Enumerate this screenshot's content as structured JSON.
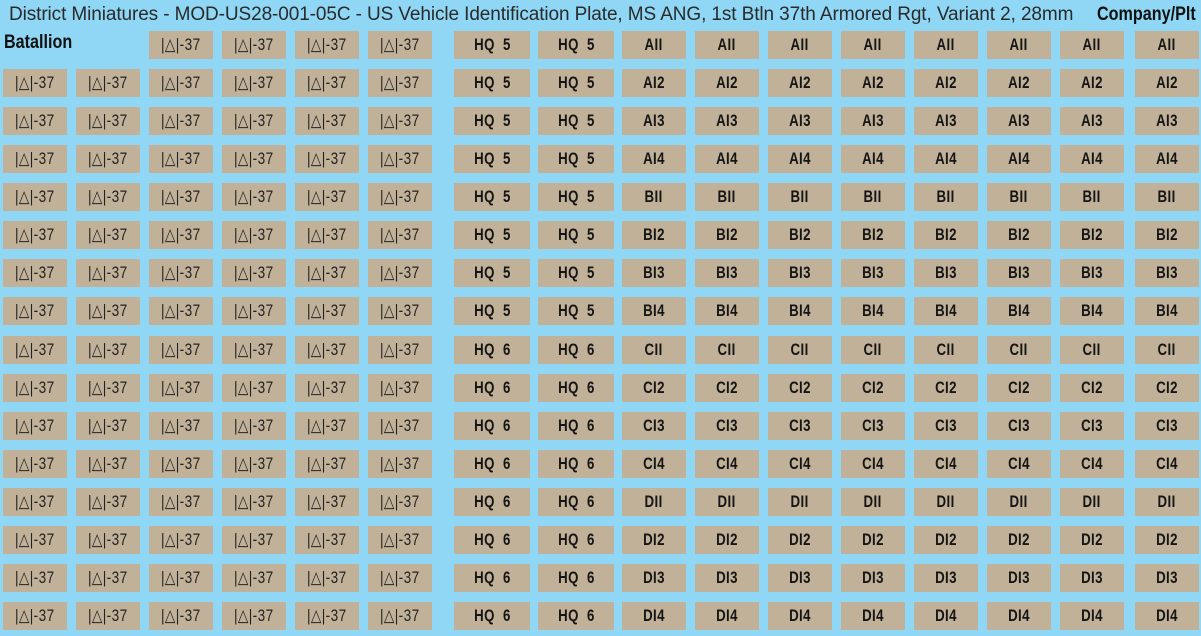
{
  "title": "District Miniatures - MOD-US28-001-05C - US Vehicle Identification Plate, MS ANG, 1st Btln 37th Armored Rgt, Variant 2, 28mm",
  "sections": {
    "battalion": "Batallion",
    "company": "Company/Plt"
  },
  "colors": {
    "background": "#8fd7f5",
    "plate": "#c0b198",
    "text": "#151515"
  },
  "battalion_rows": [
    [
      "|△|-37",
      "|△|-37",
      "|△|-37",
      "|△|-37"
    ],
    [
      "|△|-37",
      "|△|-37",
      "|△|-37",
      "|△|-37",
      "|△|-37",
      "|△|-37"
    ],
    [
      "|△|-37",
      "|△|-37",
      "|△|-37",
      "|△|-37",
      "|△|-37",
      "|△|-37"
    ],
    [
      "|△|-37",
      "|△|-37",
      "|△|-37",
      "|△|-37",
      "|△|-37",
      "|△|-37"
    ],
    [
      "|△|-37",
      "|△|-37",
      "|△|-37",
      "|△|-37",
      "|△|-37",
      "|△|-37"
    ],
    [
      "|△|-37",
      "|△|-37",
      "|△|-37",
      "|△|-37",
      "|△|-37",
      "|△|-37"
    ],
    [
      "|△|-37",
      "|△|-37",
      "|△|-37",
      "|△|-37",
      "|△|-37",
      "|△|-37"
    ],
    [
      "|△|-37",
      "|△|-37",
      "|△|-37",
      "|△|-37",
      "|△|-37",
      "|△|-37"
    ],
    [
      "|△|-37",
      "|△|-37",
      "|△|-37",
      "|△|-37",
      "|△|-37",
      "|△|-37"
    ],
    [
      "|△|-37",
      "|△|-37",
      "|△|-37",
      "|△|-37",
      "|△|-37",
      "|△|-37"
    ],
    [
      "|△|-37",
      "|△|-37",
      "|△|-37",
      "|△|-37",
      "|△|-37",
      "|△|-37"
    ],
    [
      "|△|-37",
      "|△|-37",
      "|△|-37",
      "|△|-37",
      "|△|-37",
      "|△|-37"
    ],
    [
      "|△|-37",
      "|△|-37",
      "|△|-37",
      "|△|-37",
      "|△|-37",
      "|△|-37"
    ],
    [
      "|△|-37",
      "|△|-37",
      "|△|-37",
      "|△|-37",
      "|△|-37",
      "|△|-37"
    ],
    [
      "|△|-37",
      "|△|-37",
      "|△|-37",
      "|△|-37",
      "|△|-37",
      "|△|-37"
    ],
    [
      "|△|-37",
      "|△|-37",
      "|△|-37",
      "|△|-37",
      "|△|-37",
      "|△|-37"
    ]
  ],
  "company_rows": [
    {
      "hq": "HQ  5",
      "plt": "AII"
    },
    {
      "hq": "HQ  5",
      "plt": "AI2"
    },
    {
      "hq": "HQ  5",
      "plt": "AI3"
    },
    {
      "hq": "HQ  5",
      "plt": "AI4"
    },
    {
      "hq": "HQ  5",
      "plt": "BII"
    },
    {
      "hq": "HQ  5",
      "plt": "BI2"
    },
    {
      "hq": "HQ  5",
      "plt": "BI3"
    },
    {
      "hq": "HQ  5",
      "plt": "BI4"
    },
    {
      "hq": "HQ  6",
      "plt": "CII"
    },
    {
      "hq": "HQ  6",
      "plt": "CI2"
    },
    {
      "hq": "HQ  6",
      "plt": "CI3"
    },
    {
      "hq": "HQ  6",
      "plt": "CI4"
    },
    {
      "hq": "HQ  6",
      "plt": "DII"
    },
    {
      "hq": "HQ  6",
      "plt": "DI2"
    },
    {
      "hq": "HQ  6",
      "plt": "DI3"
    },
    {
      "hq": "HQ  6",
      "plt": "DI4"
    }
  ]
}
